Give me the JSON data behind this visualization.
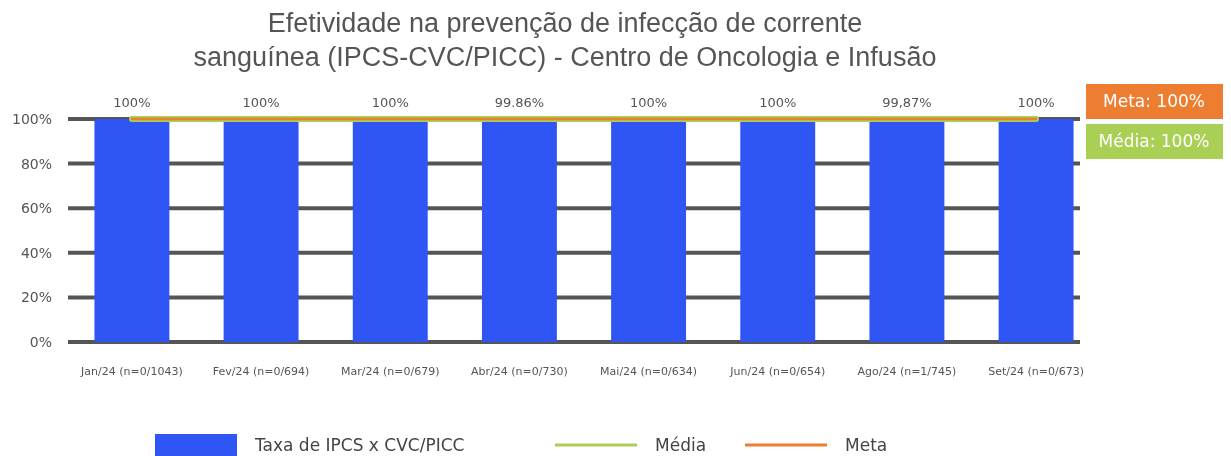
{
  "chart_data": {
    "type": "bar",
    "title": "Efetividade na prevenção de infecção de corrente sanguínea (IPCS-CVC/PICC) - Centro de Oncologia e Infusão",
    "categories": [
      "Jan/24 (n=0/1043)",
      "Fev/24 (n=0/694)",
      "Mar/24 (n=0/679)",
      "Abr/24 (n=0/730)",
      "Mai/24 (n=0/634)",
      "Jun/24 (n=0/654)",
      "Ago/24 (n=1/745)",
      "Set/24 (n=0/673)"
    ],
    "series": [
      {
        "name": "Taxa de IPCS x CVC/PICC",
        "color": "#2f55f5",
        "values": [
          100,
          100,
          100,
          99.86,
          100,
          100,
          99.87,
          100
        ],
        "value_labels": [
          "100%",
          "100%",
          "100%",
          "99.86%",
          "100%",
          "100%",
          "99,87%",
          "100%"
        ]
      },
      {
        "name": "Média",
        "type": "line",
        "color": "#a9cf54",
        "values": [
          100,
          100,
          100,
          100,
          100,
          100,
          100,
          100
        ]
      },
      {
        "name": "Meta",
        "type": "line",
        "color": "#ed7d31",
        "values": [
          100,
          100,
          100,
          100,
          100,
          100,
          100,
          100
        ]
      }
    ],
    "annotations": [
      "Meta: 100%",
      "Média: 100%"
    ],
    "ylim": [
      0,
      100
    ],
    "yticks": [
      {
        "value": 0,
        "label": "0%"
      },
      {
        "value": 20,
        "label": "20%"
      },
      {
        "value": 40,
        "label": "40%"
      },
      {
        "value": 60,
        "label": "60%"
      },
      {
        "value": 80,
        "label": "80%"
      },
      {
        "value": 100,
        "label": "100%"
      }
    ],
    "grid": "y",
    "legend": "bottom"
  }
}
